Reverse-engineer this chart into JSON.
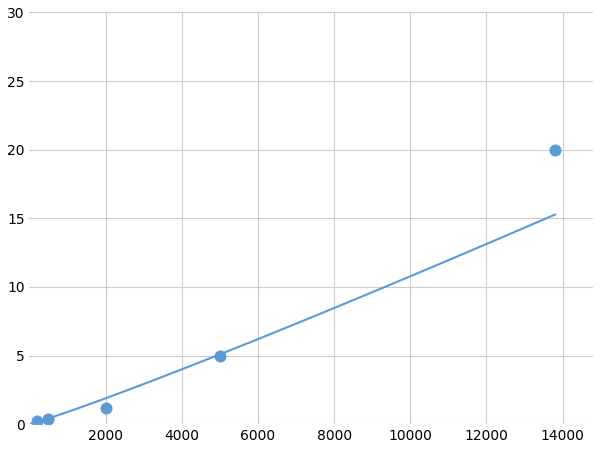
{
  "x_data": [
    200,
    500,
    2000,
    5000,
    13800
  ],
  "y_data": [
    0.2,
    0.4,
    1.2,
    5.0,
    20.0
  ],
  "line_color": "#5b9bd5",
  "marker_color": "#5b9bd5",
  "marker_size": 5,
  "linewidth": 1.5,
  "xlim": [
    0,
    14800
  ],
  "ylim": [
    0,
    30
  ],
  "xticks": [
    2000,
    4000,
    6000,
    8000,
    10000,
    12000,
    14000
  ],
  "yticks": [
    0,
    5,
    10,
    15,
    20,
    25,
    30
  ],
  "grid_color": "#cccccc",
  "background_color": "#ffffff",
  "tick_labelsize": 10
}
